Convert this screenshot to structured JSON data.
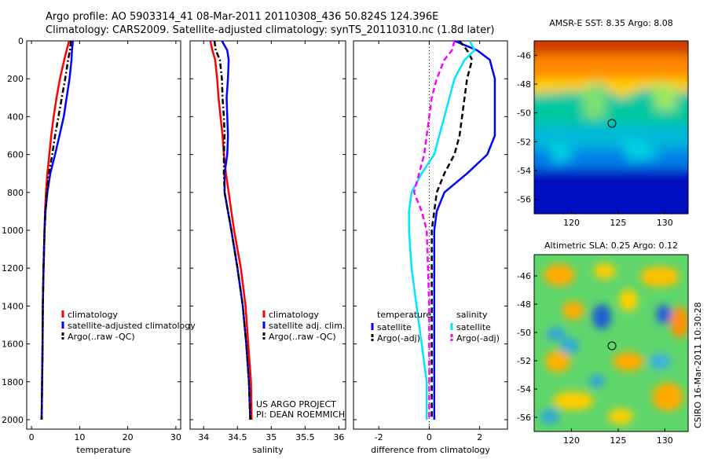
{
  "header": {
    "line1": "Argo profile: AO 5903314_41 08-Mar-2011 20110308_436 50.824S 124.396E",
    "line2": "Climatology: CARS2009. Satellite-adjusted climatology: synTS_20110310.nc (1.8d later)"
  },
  "footer": {
    "project": "US ARGO PROJECT",
    "pi": "PI: DEAN ROEMMICH",
    "credit": "CSIRO 16-Mar-2011 10:30:28"
  },
  "chart_data": [
    {
      "id": "temperature",
      "type": "line",
      "xlabel": "temperature",
      "ylabel": "",
      "xlim": [
        -1,
        31
      ],
      "ylim": [
        2050,
        0
      ],
      "xticks": [
        0,
        10,
        20,
        30
      ],
      "yticks": [
        0,
        200,
        400,
        600,
        800,
        1000,
        1200,
        1400,
        1600,
        1800,
        2000
      ],
      "y": [
        0,
        50,
        100,
        200,
        300,
        400,
        500,
        600,
        700,
        800,
        900,
        1000,
        1200,
        1400,
        1600,
        1800,
        2000
      ],
      "series": [
        {
          "name": "climatology",
          "color": "#ff0000",
          "dash": "solid",
          "values": [
            7.8,
            7.3,
            6.8,
            5.9,
            5.2,
            4.6,
            4.1,
            3.7,
            3.3,
            3.0,
            2.8,
            2.7,
            2.5,
            2.35,
            2.3,
            2.2,
            2.1
          ]
        },
        {
          "name": "satellite-adjusted climatology",
          "color": "#0000ff",
          "dash": "solid",
          "values": [
            8.6,
            8.4,
            8.3,
            7.9,
            7.3,
            6.7,
            5.8,
            4.9,
            3.9,
            3.3,
            2.9,
            2.7,
            2.5,
            2.35,
            2.3,
            2.2,
            2.1
          ]
        },
        {
          "name": "Argo(..raw -QC)",
          "color": "#000000",
          "dash": "dashdot",
          "values": [
            8.2,
            8.0,
            7.6,
            7.0,
            6.3,
            5.6,
            4.9,
            4.3,
            3.6,
            3.2,
            2.9,
            2.7,
            2.5,
            2.35,
            2.3,
            2.2,
            2.1
          ]
        }
      ]
    },
    {
      "id": "salinity",
      "type": "line",
      "xlabel": "salinity",
      "ylabel": "",
      "xlim": [
        33.8,
        36.1
      ],
      "ylim": [
        2050,
        0
      ],
      "xticks": [
        34,
        34.5,
        35,
        35.5,
        36
      ],
      "xticklabels": [
        "34",
        "34.5",
        "35",
        "35.5",
        "36"
      ],
      "yticks": [
        0,
        200,
        400,
        600,
        800,
        1000,
        1200,
        1400,
        1600,
        1800,
        2000
      ],
      "y": [
        0,
        50,
        100,
        200,
        300,
        400,
        500,
        600,
        700,
        800,
        900,
        1000,
        1200,
        1400,
        1600,
        1800,
        2000
      ],
      "series": [
        {
          "name": "climatology",
          "color": "#ff0000",
          "dash": "solid",
          "values": [
            34.1,
            34.13,
            34.17,
            34.2,
            34.22,
            34.25,
            34.28,
            34.3,
            34.33,
            34.37,
            34.41,
            34.45,
            34.55,
            34.62,
            34.66,
            34.7,
            34.71
          ]
        },
        {
          "name": "satellite adj. clim.",
          "color": "#0000ff",
          "dash": "solid",
          "values": [
            34.27,
            34.35,
            34.37,
            34.36,
            34.34,
            34.35,
            34.36,
            34.35,
            34.31,
            34.31,
            34.36,
            34.41,
            34.5,
            34.58,
            34.63,
            34.67,
            34.69
          ]
        },
        {
          "name": "Argo(..raw -QC)",
          "color": "#000000",
          "dash": "dashdot",
          "values": [
            34.16,
            34.18,
            34.24,
            34.27,
            34.28,
            34.3,
            34.31,
            34.3,
            34.3,
            34.31,
            34.36,
            34.41,
            34.5,
            34.58,
            34.63,
            34.67,
            34.69
          ]
        }
      ]
    },
    {
      "id": "difference",
      "type": "line",
      "xlabel": "difference from climatology",
      "ylabel": "",
      "xlim": [
        -3,
        3.1
      ],
      "ylim": [
        2050,
        0
      ],
      "xticks": [
        -2,
        0,
        2
      ],
      "yticks": [
        0,
        200,
        400,
        600,
        800,
        1000,
        1200,
        1400,
        1600,
        1800,
        2000
      ],
      "y": [
        0,
        50,
        100,
        200,
        300,
        400,
        500,
        600,
        700,
        800,
        900,
        1000,
        1200,
        1400,
        1600,
        1800,
        2000
      ],
      "series": [
        {
          "name": "temperature satellite",
          "color": "#0000ff",
          "dash": "solid",
          "values": [
            1.0,
            1.9,
            2.4,
            2.6,
            2.6,
            2.6,
            2.6,
            2.3,
            1.5,
            0.6,
            0.3,
            0.2,
            0.2,
            0.2,
            0.2,
            0.2,
            0.2
          ]
        },
        {
          "name": "temperature Argo(-adj)",
          "color": "#000000",
          "dash": "dashed",
          "values": [
            1.2,
            1.5,
            1.7,
            1.5,
            1.4,
            1.3,
            1.2,
            1.0,
            0.6,
            0.3,
            0.2,
            0.1,
            0.1,
            0.1,
            0.1,
            0.1,
            0.1
          ]
        },
        {
          "name": "salinity satellite",
          "color": "#00e5ff",
          "dash": "solid",
          "values": [
            1.6,
            1.8,
            1.4,
            1.0,
            0.8,
            0.6,
            0.4,
            0.2,
            -0.3,
            -0.7,
            -0.8,
            -0.8,
            -0.7,
            -0.5,
            -0.3,
            -0.1,
            -0.1
          ]
        },
        {
          "name": "salinity Argo(-adj)",
          "color": "#ff00ff",
          "dash": "dashed",
          "values": [
            1.0,
            0.9,
            0.6,
            0.3,
            0.1,
            0.0,
            -0.1,
            -0.2,
            -0.4,
            -0.6,
            -0.3,
            -0.1,
            -0.05,
            0.0,
            0.0,
            0.0,
            0.0
          ]
        }
      ],
      "legend": {
        "temperature_title": "temperature",
        "salinity_title": "salinity",
        "temperature_items": [
          "satellite",
          "Argo(-adj)"
        ],
        "salinity_items": [
          "satellite",
          "Argo(-adj)"
        ]
      },
      "zero_line": 0
    },
    {
      "id": "sst",
      "type": "heatmap",
      "title": "AMSR-E SST: 8.35 Argo: 8.08",
      "xlim": [
        116,
        132.5
      ],
      "ylim": [
        -57,
        -45
      ],
      "xticks": [
        120,
        125,
        130
      ],
      "yticks": [
        -46,
        -48,
        -50,
        -52,
        -54,
        -56
      ],
      "marker": {
        "lon": 124.4,
        "lat": -50.8
      },
      "colors": {
        "warm": "#c83200",
        "mid": "#ffff00",
        "cool": "#00c8c8",
        "cold": "#0000c8"
      }
    },
    {
      "id": "sla",
      "type": "heatmap",
      "title": "Altimetric SLA: 0.25 Argo: 0.12",
      "xlim": [
        116,
        132.5
      ],
      "ylim": [
        -57,
        -44.5
      ],
      "xticks": [
        120,
        125,
        130
      ],
      "yticks": [
        -46,
        -48,
        -50,
        -52,
        -54,
        -56
      ],
      "marker": {
        "lon": 124.4,
        "lat": -50.8
      },
      "colors": {
        "background": "#5fd66b",
        "high": "#ffaa00",
        "low": "#1a5fd0"
      }
    }
  ],
  "legends": {
    "temperature": [
      "climatology",
      "satellite-adjusted climatology",
      "Argo(..raw -QC)"
    ],
    "salinity": [
      "climatology",
      "satellite adj. clim.",
      "Argo(..raw -QC)"
    ]
  }
}
